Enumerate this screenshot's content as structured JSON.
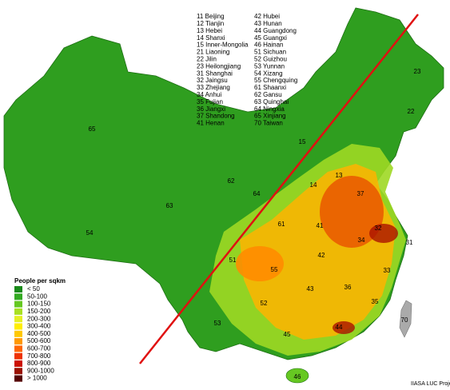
{
  "province_list": [
    "11 Beijing",
    "12 Tianjin",
    "13 Hebei",
    "14 Shanxi",
    "15 Inner-Mongolia",
    "21 Liaoning",
    "22 Jilin",
    "23 Heilongjiang",
    "31 Shanghai",
    "32 Jaingsu",
    "33 Zhejiang",
    "34 Anhui",
    "35 Fujian",
    "36 Jiangxi",
    "37 Shandong",
    "41 Henan",
    "42 Hubei",
    "43 Hunan",
    "44 Guangdong",
    "45 Guangxi",
    "46 Hainan",
    "51 Sichuan",
    "52 Guizhou",
    "53 Yunnan",
    "54 Xizang",
    "55 Chengquing",
    "61 Shaanxi",
    "62 Gansu",
    "63 Quinghai",
    "64 Ningxia",
    "65 Xinjiang",
    "70 Taiwan"
  ],
  "map_labels": [
    "65",
    "63",
    "54",
    "23",
    "22",
    "15",
    "62",
    "64",
    "13",
    "14",
    "37",
    "61",
    "41",
    "32",
    "31",
    "34",
    "51",
    "55",
    "42",
    "33",
    "43",
    "36",
    "52",
    "35",
    "53",
    "45",
    "44",
    "70",
    "46"
  ],
  "legend": {
    "title": "People per sqkm",
    "items": [
      {
        "label": "< 50",
        "color": "#1a8a1a"
      },
      {
        "label": "50-100",
        "color": "#33aa22"
      },
      {
        "label": "100-150",
        "color": "#66c822"
      },
      {
        "label": "150-200",
        "color": "#a8e022"
      },
      {
        "label": "200-300",
        "color": "#e4f022"
      },
      {
        "label": "300-400",
        "color": "#ffee00"
      },
      {
        "label": "400-500",
        "color": "#ffc800"
      },
      {
        "label": "500-600",
        "color": "#ff9900"
      },
      {
        "label": "600-700",
        "color": "#ff6600"
      },
      {
        "label": "700-800",
        "color": "#ee3300"
      },
      {
        "label": "800-900",
        "color": "#cc1100"
      },
      {
        "label": "900-1000",
        "color": "#991100"
      },
      {
        "label": "> 1000",
        "color": "#550000"
      }
    ]
  },
  "credit": "IIASA LUC Projec"
}
